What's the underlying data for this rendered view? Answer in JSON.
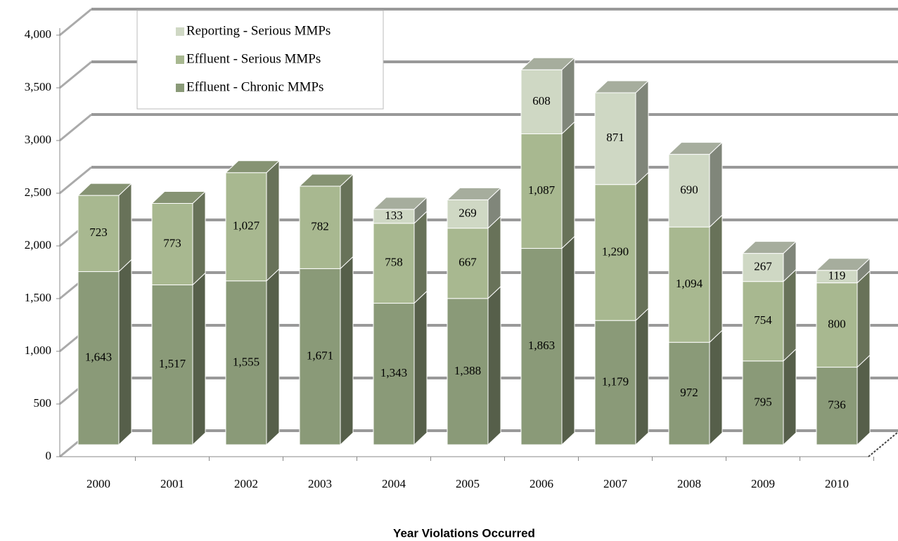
{
  "chart_data": {
    "type": "bar3d_stacked",
    "x_label": "Year Violations Occurred",
    "categories": [
      "2000",
      "2001",
      "2002",
      "2003",
      "2004",
      "2005",
      "2006",
      "2007",
      "2008",
      "2009",
      "2010"
    ],
    "series": [
      {
        "name": "Effluent - Chronic MMPs",
        "color": "#8a9a78",
        "values": [
          1643,
          1517,
          1555,
          1671,
          1343,
          1388,
          1863,
          1179,
          972,
          795,
          736
        ],
        "value_labels": [
          "1,643",
          "1,517",
          "1,555",
          "1,671",
          "1,343",
          "1,388",
          "1,863",
          "1,179",
          "972",
          "795",
          "736"
        ]
      },
      {
        "name": "Effluent - Serious MMPs",
        "color": "#a8b890",
        "values": [
          723,
          773,
          1027,
          782,
          758,
          667,
          1087,
          1290,
          1094,
          754,
          800
        ],
        "value_labels": [
          "723",
          "773",
          "1,027",
          "782",
          "758",
          "667",
          "1,087",
          "1,290",
          "1,094",
          "754",
          "800"
        ]
      },
      {
        "name": "Reporting - Serious MMPs",
        "color": "#cfd8c4",
        "values": [
          null,
          null,
          null,
          null,
          133,
          269,
          608,
          871,
          690,
          267,
          119
        ],
        "value_labels": [
          null,
          null,
          null,
          null,
          "133",
          "269",
          "608",
          "871",
          "690",
          "267",
          "119"
        ]
      }
    ],
    "ylim": [
      0,
      4000
    ],
    "yticks": [
      0,
      500,
      {
        "value": 1000,
        "label": "1,000"
      },
      {
        "value": 1500,
        "label": "1,500"
      },
      {
        "value": 2000,
        "label": "2,000"
      },
      {
        "value": 2500,
        "label": "2,500"
      },
      {
        "value": 3000,
        "label": "3,000"
      },
      {
        "value": 3500,
        "label": "3,500"
      },
      {
        "value": 4000,
        "label": "4,000"
      }
    ],
    "grid": true
  }
}
